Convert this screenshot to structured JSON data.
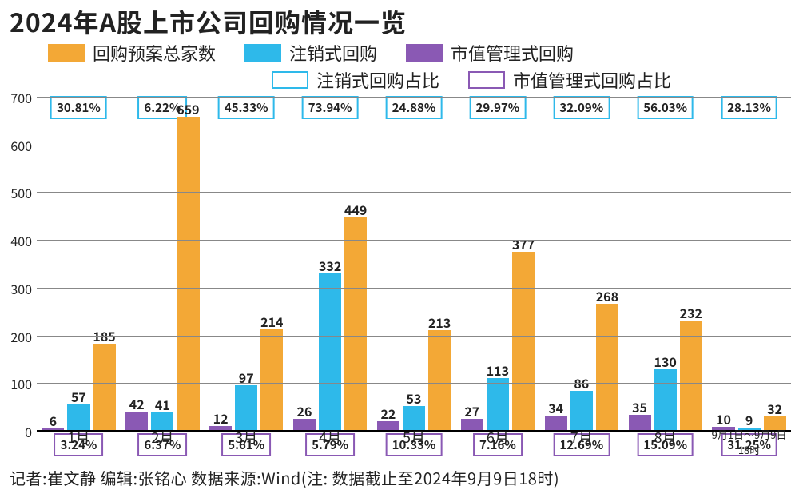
{
  "title": "2024年A股上市公司回购情况一览",
  "colors": {
    "orange": "#f3a836",
    "blue": "#2eb9ea",
    "purple": "#8a59b4",
    "ink": "#222222",
    "grid": "#888888"
  },
  "legend": [
    {
      "label": "回购预案总家数",
      "kind": "solid",
      "colorKey": "orange"
    },
    {
      "label": "注销式回购",
      "kind": "solid",
      "colorKey": "blue"
    },
    {
      "label": "市值管理式回购",
      "kind": "solid",
      "colorKey": "purple"
    },
    {
      "label": "注销式回购占比",
      "kind": "hollow",
      "colorKey": "blue"
    },
    {
      "label": "市值管理式回购占比",
      "kind": "hollow",
      "colorKey": "purple"
    }
  ],
  "legend_fontsize_pt": 16,
  "title_fontsize_pt": 24,
  "yaxis": {
    "min": 0,
    "max": 700,
    "step": 100
  },
  "categories": [
    {
      "label": "1月",
      "small": false
    },
    {
      "label": "2月",
      "small": false
    },
    {
      "label": "3月",
      "small": false
    },
    {
      "label": "4月",
      "small": false
    },
    {
      "label": "5月",
      "small": false
    },
    {
      "label": "6月",
      "small": false
    },
    {
      "label": "7月",
      "small": false
    },
    {
      "label": "8月",
      "small": false
    },
    {
      "label": "9月1日～9月9日18时",
      "small": true
    }
  ],
  "series": {
    "purple": {
      "nameKey": "legend.2.label",
      "colorKey": "purple",
      "values": [
        6,
        42,
        12,
        26,
        22,
        27,
        34,
        35,
        10
      ]
    },
    "blue": {
      "nameKey": "legend.1.label",
      "colorKey": "blue",
      "values": [
        57,
        41,
        97,
        332,
        53,
        113,
        86,
        130,
        9
      ]
    },
    "orange": {
      "nameKey": "legend.0.label",
      "colorKey": "orange",
      "values": [
        185,
        659,
        214,
        449,
        213,
        377,
        268,
        232,
        32
      ]
    }
  },
  "bar_order": [
    "purple",
    "blue",
    "orange"
  ],
  "percent_top": [
    "30.81%",
    "6.22%",
    "45.33%",
    "73.94%",
    "24.88%",
    "29.97%",
    "32.09%",
    "56.03%",
    "28.13%"
  ],
  "percent_bottom": [
    "3.24%",
    "6.37%",
    "5.61%",
    "5.79%",
    "10.33%",
    "7.16%",
    "12.69%",
    "15.09%",
    "31.25%"
  ],
  "percent_top_colorKey": "blue",
  "percent_bottom_colorKey": "purple",
  "value_label_fontsize_pt": 12,
  "footnote": "记者:崔文静  编辑:张铭心  数据来源:Wind(注: 数据截止至2024年9月9日18时)"
}
